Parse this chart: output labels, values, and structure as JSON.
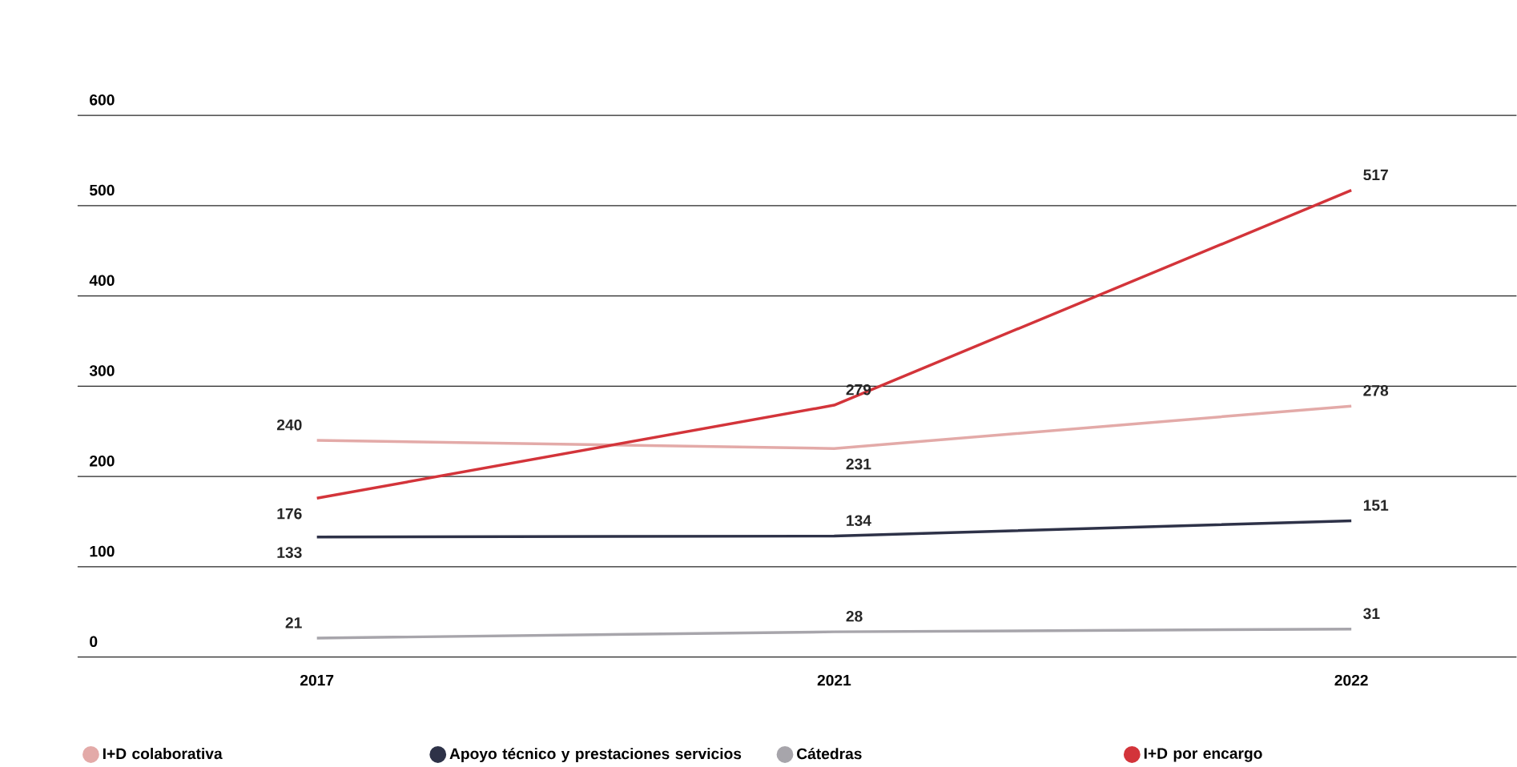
{
  "chart_data": {
    "type": "line",
    "categories": [
      "2017",
      "2021",
      "2022"
    ],
    "series": [
      {
        "name": "I+D colaborativa",
        "color": "#e3aaa8",
        "values": [
          240,
          231,
          278
        ]
      },
      {
        "name": "Apoyo técnico y prestaciones servicios",
        "color": "#2e3248",
        "values": [
          133,
          134,
          151
        ]
      },
      {
        "name": "Cátedras",
        "color": "#a7a5ab",
        "values": [
          21,
          28,
          31
        ]
      },
      {
        "name": "I+D por encargo",
        "color": "#d3343a",
        "values": [
          176,
          279,
          517
        ]
      }
    ],
    "ylim": [
      0,
      600
    ],
    "yticks": [
      0,
      100,
      200,
      300,
      400,
      500,
      600
    ],
    "grid": "y",
    "legend": "bottom",
    "data_labels": true
  }
}
